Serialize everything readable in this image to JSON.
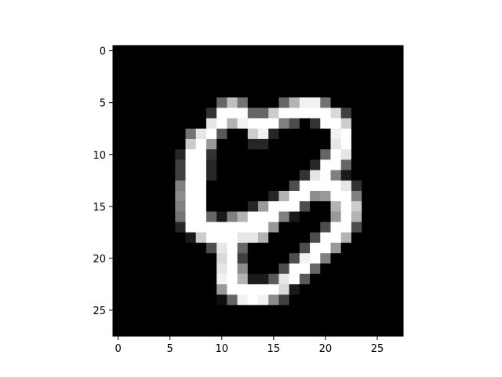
{
  "chart_data": {
    "type": "heatmap",
    "colormap": "gray",
    "value_range": [
      0,
      1
    ],
    "xlim": [
      -0.5,
      27.5
    ],
    "ylim": [
      27.5,
      -0.5
    ],
    "x_ticks": [
      0,
      5,
      10,
      15,
      20,
      25
    ],
    "y_ticks": [
      0,
      5,
      10,
      15,
      20,
      25
    ],
    "x_tick_labels": [
      "0",
      "5",
      "10",
      "15",
      "20",
      "25"
    ],
    "y_tick_labels": [
      "0",
      "5",
      "10",
      "15",
      "20",
      "25"
    ],
    "grid": false,
    "values": [
      [
        0,
        0,
        0,
        0,
        0,
        0,
        0,
        0,
        0,
        0,
        0,
        0,
        0,
        0,
        0,
        0,
        0,
        0,
        0,
        0,
        0,
        0,
        0,
        0,
        0,
        0,
        0,
        0
      ],
      [
        0,
        0,
        0,
        0,
        0,
        0,
        0,
        0,
        0,
        0,
        0,
        0,
        0,
        0,
        0,
        0,
        0,
        0,
        0,
        0,
        0,
        0,
        0,
        0,
        0,
        0,
        0,
        0
      ],
      [
        0,
        0,
        0,
        0,
        0,
        0,
        0,
        0,
        0,
        0,
        0,
        0,
        0,
        0,
        0,
        0,
        0,
        0,
        0,
        0,
        0,
        0,
        0,
        0,
        0,
        0,
        0,
        0
      ],
      [
        0,
        0,
        0,
        0,
        0,
        0,
        0,
        0,
        0,
        0,
        0,
        0,
        0,
        0,
        0,
        0,
        0,
        0,
        0,
        0,
        0,
        0,
        0,
        0,
        0,
        0,
        0,
        0
      ],
      [
        0,
        0,
        0,
        0,
        0,
        0,
        0,
        0,
        0,
        0,
        0,
        0,
        0,
        0,
        0,
        0,
        0,
        0,
        0,
        0,
        0,
        0,
        0,
        0,
        0,
        0,
        0,
        0
      ],
      [
        0,
        0,
        0,
        0,
        0,
        0,
        0,
        0,
        0,
        0,
        0.4,
        0.75,
        0.45,
        0,
        0,
        0,
        0.4,
        0.7,
        0.95,
        0.95,
        0.45,
        0,
        0,
        0,
        0,
        0,
        0,
        0
      ],
      [
        0,
        0,
        0,
        0,
        0,
        0,
        0,
        0,
        0,
        0.2,
        1,
        1,
        1,
        0.4,
        0.4,
        0.8,
        1,
        1,
        1,
        1,
        1,
        0.85,
        0.25,
        0,
        0,
        0,
        0,
        0
      ],
      [
        0,
        0,
        0,
        0,
        0,
        0,
        0,
        0,
        0,
        0.9,
        1,
        0.7,
        0.95,
        1,
        1,
        1,
        0.5,
        0.3,
        0,
        0.2,
        1,
        1,
        0.8,
        0,
        0,
        0,
        0,
        0
      ],
      [
        0,
        0,
        0,
        0,
        0,
        0,
        0,
        0.45,
        0.9,
        1,
        0.35,
        0,
        0,
        0.8,
        0.95,
        0.15,
        0,
        0,
        0,
        0,
        0,
        0.95,
        1,
        0,
        0,
        0,
        0,
        0
      ],
      [
        0,
        0,
        0,
        0,
        0,
        0,
        0,
        0.8,
        1,
        0.6,
        0,
        0,
        0,
        0.15,
        0.15,
        0,
        0,
        0,
        0,
        0,
        0,
        0.9,
        1,
        0,
        0,
        0,
        0,
        0
      ],
      [
        0,
        0,
        0,
        0,
        0,
        0,
        0.15,
        1,
        1,
        0.2,
        0,
        0,
        0,
        0,
        0,
        0,
        0,
        0,
        0,
        0,
        0.4,
        1,
        0.9,
        0,
        0,
        0,
        0,
        0
      ],
      [
        0,
        0,
        0,
        0,
        0,
        0,
        0.25,
        1,
        1,
        0.15,
        0,
        0,
        0,
        0,
        0,
        0,
        0,
        0,
        0,
        0.15,
        1,
        1,
        0.4,
        0,
        0,
        0,
        0,
        0
      ],
      [
        0,
        0,
        0,
        0,
        0,
        0,
        0.25,
        1,
        1,
        0.15,
        0,
        0,
        0,
        0,
        0,
        0,
        0,
        0,
        0.2,
        0.9,
        1,
        0.5,
        0.1,
        0,
        0,
        0,
        0,
        0
      ],
      [
        0,
        0,
        0,
        0,
        0,
        0,
        0.5,
        1,
        1,
        0,
        0,
        0,
        0,
        0,
        0,
        0,
        0,
        0.3,
        1,
        1,
        1,
        1,
        0.9,
        0.2,
        0,
        0,
        0,
        0
      ],
      [
        0,
        0,
        0,
        0,
        0,
        0,
        0.55,
        1,
        1,
        0,
        0,
        0,
        0,
        0,
        0,
        0.15,
        0.7,
        1,
        1,
        0.55,
        0.6,
        1,
        1,
        0.5,
        0,
        0,
        0,
        0
      ],
      [
        0,
        0,
        0,
        0,
        0,
        0,
        0.5,
        1,
        1,
        0,
        0,
        0,
        0,
        0.15,
        0.6,
        1,
        1,
        1,
        0.3,
        0,
        0,
        0.7,
        1,
        0.8,
        0,
        0,
        0,
        0
      ],
      [
        0,
        0,
        0,
        0,
        0,
        0,
        0.45,
        1,
        1,
        0.4,
        0.1,
        0.5,
        0.7,
        1,
        1,
        1,
        0.5,
        0.1,
        0,
        0,
        0,
        0.6,
        1,
        0.7,
        0,
        0,
        0,
        0
      ],
      [
        0,
        0,
        0,
        0,
        0,
        0,
        0.15,
        1,
        1,
        1,
        1,
        1,
        1,
        1,
        1,
        0.6,
        0,
        0,
        0,
        0,
        0.3,
        1,
        1,
        0.3,
        0,
        0,
        0,
        0
      ],
      [
        0,
        0,
        0,
        0,
        0,
        0,
        0,
        0.1,
        0.8,
        1,
        1,
        1,
        0.9,
        0.9,
        0.7,
        0,
        0,
        0,
        0,
        0.3,
        1,
        1,
        0.7,
        0,
        0,
        0,
        0,
        0
      ],
      [
        0,
        0,
        0,
        0,
        0,
        0,
        0,
        0,
        0,
        0.3,
        0.9,
        1,
        0.4,
        0,
        0,
        0,
        0,
        0,
        0.3,
        1,
        1,
        0.6,
        0,
        0,
        0,
        0,
        0,
        0
      ],
      [
        0,
        0,
        0,
        0,
        0,
        0,
        0,
        0,
        0,
        0,
        0.85,
        1,
        0.25,
        0,
        0,
        0,
        0,
        0.3,
        0.95,
        1,
        0.5,
        0,
        0,
        0,
        0,
        0,
        0,
        0
      ],
      [
        0,
        0,
        0,
        0,
        0,
        0,
        0,
        0,
        0,
        0,
        0.9,
        1,
        0.55,
        0,
        0,
        0,
        0.3,
        1,
        1,
        0.4,
        0,
        0,
        0,
        0,
        0,
        0,
        0,
        0
      ],
      [
        0,
        0,
        0,
        0,
        0,
        0,
        0,
        0,
        0,
        0,
        0.95,
        1,
        0.7,
        0.1,
        0.1,
        0.35,
        0.9,
        1,
        0.35,
        0,
        0,
        0,
        0,
        0,
        0,
        0,
        0,
        0
      ],
      [
        0,
        0,
        0,
        0,
        0,
        0,
        0,
        0,
        0,
        0,
        0.6,
        1,
        1,
        1,
        1,
        1,
        0.85,
        0.1,
        0,
        0,
        0,
        0,
        0,
        0,
        0,
        0,
        0,
        0
      ],
      [
        0,
        0,
        0,
        0,
        0,
        0,
        0,
        0,
        0,
        0,
        0.05,
        0.4,
        0.95,
        1,
        0.95,
        0.55,
        0.25,
        0,
        0,
        0,
        0,
        0,
        0,
        0,
        0,
        0,
        0,
        0
      ],
      [
        0,
        0,
        0,
        0,
        0,
        0,
        0,
        0,
        0,
        0,
        0,
        0,
        0,
        0,
        0,
        0,
        0,
        0,
        0,
        0,
        0,
        0,
        0,
        0,
        0,
        0,
        0,
        0
      ],
      [
        0,
        0,
        0,
        0,
        0,
        0,
        0,
        0,
        0,
        0,
        0,
        0,
        0,
        0,
        0,
        0,
        0,
        0,
        0,
        0,
        0,
        0,
        0,
        0,
        0,
        0,
        0,
        0
      ],
      [
        0,
        0,
        0,
        0,
        0,
        0,
        0,
        0,
        0,
        0,
        0,
        0,
        0,
        0,
        0,
        0,
        0,
        0,
        0,
        0,
        0,
        0,
        0,
        0,
        0,
        0,
        0,
        0
      ]
    ]
  },
  "colors": {
    "background": "#ffffff",
    "axis": "#000000",
    "tick_text": "#000000"
  }
}
